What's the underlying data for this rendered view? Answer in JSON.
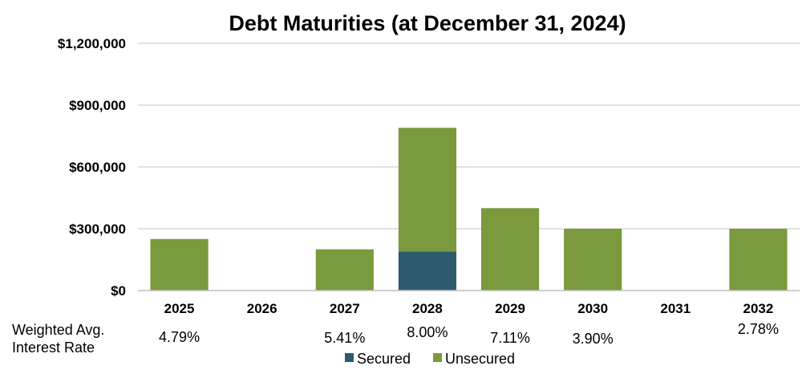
{
  "chart_data": {
    "type": "bar",
    "stacked": true,
    "title": "Debt Maturities (at December 31, 2024)",
    "categories": [
      "2025",
      "2026",
      "2027",
      "2028",
      "2029",
      "2030",
      "2031",
      "2032"
    ],
    "series": [
      {
        "name": "Secured",
        "color": "#2e5a6e",
        "values": [
          0,
          0,
          0,
          190000,
          0,
          0,
          0,
          0
        ]
      },
      {
        "name": "Unsecured",
        "color": "#7b993d",
        "values": [
          250000,
          0,
          200000,
          600000,
          400000,
          300000,
          0,
          300000
        ]
      }
    ],
    "yticks": [
      "$0",
      "$300,000",
      "$600,000",
      "$900,000",
      "$1,200,000"
    ],
    "ylim": [
      0,
      1200000
    ],
    "grid": true,
    "legend_position": "bottom",
    "rate_label": [
      "Weighted Avg.",
      "Interest Rate"
    ],
    "rates": [
      "4.79%",
      "",
      "5.41%",
      "8.00%",
      "7.11%",
      "3.90%",
      "",
      "2.78%"
    ]
  }
}
